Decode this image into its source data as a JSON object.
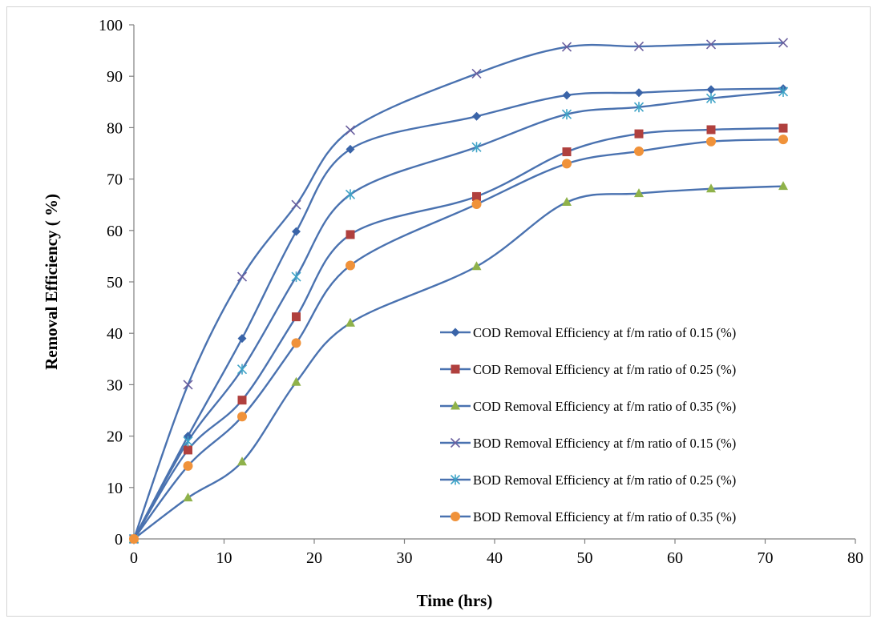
{
  "chart_data": {
    "type": "line",
    "xlabel": "Time (hrs)",
    "ylabel": "Removal Efficiency ( %)",
    "xlim": [
      0,
      80
    ],
    "ylim": [
      0,
      100
    ],
    "xticks": [
      0,
      10,
      20,
      30,
      40,
      50,
      60,
      70,
      80
    ],
    "yticks": [
      0,
      10,
      20,
      30,
      40,
      50,
      60,
      70,
      80,
      90,
      100
    ],
    "grid": false,
    "legend_position": "bottom-right",
    "x": [
      0,
      6,
      12,
      18,
      24,
      38,
      48,
      56,
      64,
      72
    ],
    "series": [
      {
        "name": "COD Removal Efficiency at f/m ratio of 0.15 (%)",
        "marker": "diamond",
        "color": "#4a72b0",
        "marker_color": "#3a64a8",
        "values": [
          0,
          20,
          39,
          59.8,
          75.8,
          82.2,
          86.3,
          86.8,
          87.4,
          87.6
        ]
      },
      {
        "name": "COD Removal Efficiency at f/m ratio of 0.25 (%)",
        "marker": "square",
        "color": "#4a72b0",
        "marker_color": "#b0403e",
        "values": [
          0,
          17.3,
          27,
          43.2,
          59.2,
          66.6,
          75.3,
          78.8,
          79.6,
          79.9
        ]
      },
      {
        "name": "COD Removal Efficiency at f/m ratio of 0.35 (%)",
        "marker": "triangle",
        "color": "#4a72b0",
        "marker_color": "#8fb24a",
        "values": [
          0,
          8,
          15,
          30.5,
          42,
          53,
          65.5,
          67.2,
          68.1,
          68.6
        ]
      },
      {
        "name": "BOD Removal Efficiency at f/m ratio of 0.15 (%)",
        "marker": "x",
        "color": "#4a72b0",
        "marker_color": "#6a5f9e",
        "values": [
          0,
          30,
          51,
          65,
          79.5,
          90.5,
          95.7,
          95.8,
          96.2,
          96.5
        ]
      },
      {
        "name": "BOD Removal Efficiency at f/m ratio of 0.25 (%)",
        "marker": "star",
        "color": "#4a72b0",
        "marker_color": "#3fa3c7",
        "values": [
          0,
          19,
          33,
          51,
          67,
          76.2,
          82.6,
          84,
          85.7,
          87
        ]
      },
      {
        "name": "BOD Removal Efficiency at f/m ratio of 0.35 (%)",
        "marker": "circle",
        "color": "#4a72b0",
        "marker_color": "#f0923a",
        "values": [
          0,
          14.2,
          23.8,
          38.1,
          53.2,
          65.1,
          73,
          75.4,
          77.3,
          77.7
        ]
      }
    ]
  }
}
